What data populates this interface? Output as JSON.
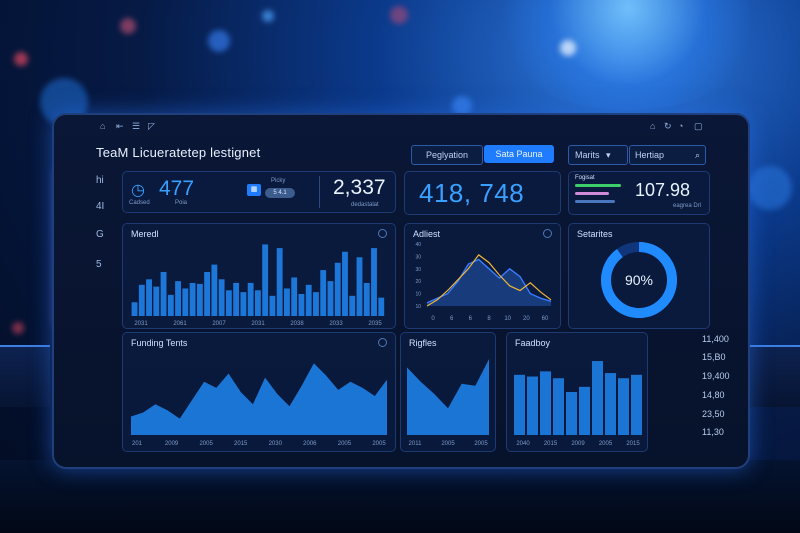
{
  "header": {
    "title": "TeaM Licueratetep lestignet",
    "tabs": [
      {
        "label": "Peglyation",
        "active": false
      },
      {
        "label": "Sata Pauna",
        "active": true
      }
    ],
    "dropdown_label": "Marits",
    "search_label": "Hertiap"
  },
  "sidebar": {
    "items": [
      "hi",
      "4I",
      "G",
      "5"
    ]
  },
  "kpis": {
    "k1": {
      "value": "477",
      "sub": "Cadsed",
      "sub2": "Poia"
    },
    "k1b": {
      "label": "Picky",
      "badge": "5 4.1"
    },
    "k2": {
      "value": "2,337",
      "sub": "dedastalat"
    },
    "k3": {
      "value": "418, 748"
    },
    "k4": {
      "label": "Fogisat",
      "value": "107.98",
      "sub": "eagrea Drl"
    }
  },
  "panels": {
    "bars_top": {
      "title": "Meredl",
      "ticks": [
        "2031",
        "2061",
        "2007",
        "2031",
        "2038",
        "2033",
        "2035"
      ]
    },
    "line": {
      "title": "Adliest",
      "yticks": [
        "40",
        "30",
        "30",
        "20",
        "10",
        "10"
      ],
      "xticks": [
        "0",
        "6",
        "6",
        "8",
        "10",
        "20",
        "60"
      ]
    },
    "donut": {
      "title": "Setarites",
      "value": "90%",
      "fraction": 0.9
    },
    "area_left": {
      "title": "Funding Tents",
      "ticks": [
        "201",
        "2009",
        "2005",
        "2015",
        "2030",
        "2006",
        "2005",
        "2005"
      ]
    },
    "area_mid": {
      "title": "Rigfles",
      "ticks": [
        "2011",
        "2005",
        "2005"
      ]
    },
    "area_right": {
      "title": "Faadboy",
      "ticks": [
        "2040",
        "2015",
        "2009",
        "2005",
        "2015"
      ],
      "yticks": [
        "11,400",
        "15,B0",
        "19,400",
        "14,80",
        "23,50",
        "11,30"
      ]
    }
  },
  "chart_data": [
    {
      "type": "bar",
      "title": "Meredl",
      "values": [
        15,
        34,
        40,
        32,
        48,
        23,
        38,
        30,
        36,
        35,
        48,
        56,
        40,
        28,
        36,
        26,
        36,
        28,
        78,
        22,
        74,
        30,
        42,
        24,
        34,
        26,
        50,
        38,
        58,
        70,
        22,
        64,
        36,
        74,
        20
      ],
      "ylim": [
        0,
        85
      ]
    },
    {
      "type": "line",
      "title": "Adliest",
      "series": [
        {
          "values": [
            2,
            5,
            8,
            16,
            27,
            30,
            24,
            18,
            24,
            19,
            8,
            5,
            3
          ]
        },
        {
          "values": [
            0,
            4,
            10,
            17,
            24,
            33,
            28,
            20,
            13,
            10,
            15,
            9,
            4
          ]
        }
      ],
      "ylim": [
        0,
        40
      ]
    },
    {
      "type": "pie",
      "title": "Setarites",
      "values": [
        90,
        10
      ]
    },
    {
      "type": "area",
      "title": "Funding Tents",
      "values": [
        18,
        22,
        30,
        24,
        16,
        34,
        52,
        46,
        60,
        42,
        30,
        56,
        40,
        28,
        48,
        70,
        58,
        44,
        52,
        46,
        38,
        54
      ],
      "ylim": [
        0,
        80
      ]
    },
    {
      "type": "area",
      "title": "Rigfles",
      "values": [
        66,
        52,
        40,
        26,
        50,
        48,
        74
      ],
      "ylim": [
        0,
        80
      ]
    },
    {
      "type": "bar",
      "title": "Faadboy",
      "values": [
        70,
        68,
        74,
        66,
        50,
        56,
        86,
        72,
        66,
        70
      ],
      "ylim": [
        0,
        100
      ]
    }
  ],
  "colors": {
    "accent": "#1f8bff",
    "bar": "#1e7fe6",
    "line_gold": "#f0b63a",
    "line_blue": "#3a7cff"
  }
}
